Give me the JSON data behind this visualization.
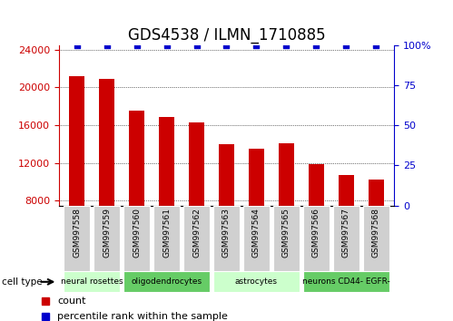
{
  "title": "GDS4538 / ILMN_1710885",
  "samples": [
    "GSM997558",
    "GSM997559",
    "GSM997560",
    "GSM997561",
    "GSM997562",
    "GSM997563",
    "GSM997564",
    "GSM997565",
    "GSM997566",
    "GSM997567",
    "GSM997568"
  ],
  "counts": [
    21200,
    20900,
    17500,
    16900,
    16300,
    14000,
    13500,
    14100,
    11900,
    10700,
    10200
  ],
  "percentile_ranks": [
    100,
    100,
    100,
    100,
    100,
    100,
    100,
    100,
    100,
    100,
    100
  ],
  "bar_color": "#cc0000",
  "dot_color": "#0000cc",
  "ylim_left": [
    7500,
    24500
  ],
  "ylim_right": [
    0,
    100
  ],
  "yticks_left": [
    8000,
    12000,
    16000,
    20000,
    24000
  ],
  "yticks_right": [
    0,
    25,
    50,
    75,
    100
  ],
  "yticks_right_labels": [
    "0",
    "25",
    "50",
    "75",
    "100%"
  ],
  "cell_groups": [
    {
      "label": "neural rosettes",
      "start": 0,
      "end": 1,
      "color": "#ccffcc"
    },
    {
      "label": "oligodendrocytes",
      "start": 2,
      "end": 4,
      "color": "#66cc66"
    },
    {
      "label": "astrocytes",
      "start": 5,
      "end": 7,
      "color": "#ccffcc"
    },
    {
      "label": "neurons CD44- EGFR-",
      "start": 8,
      "end": 10,
      "color": "#66cc66"
    }
  ],
  "legend_count_label": "count",
  "legend_pct_label": "percentile rank within the sample",
  "cell_type_label": "cell type",
  "bg_color": "#ffffff",
  "tick_box_color": "#d0d0d0",
  "grid_color": "#000000",
  "left_axis_color": "#cc0000",
  "right_axis_color": "#0000cc",
  "title_fontsize": 12,
  "axis_label_fontsize": 8
}
